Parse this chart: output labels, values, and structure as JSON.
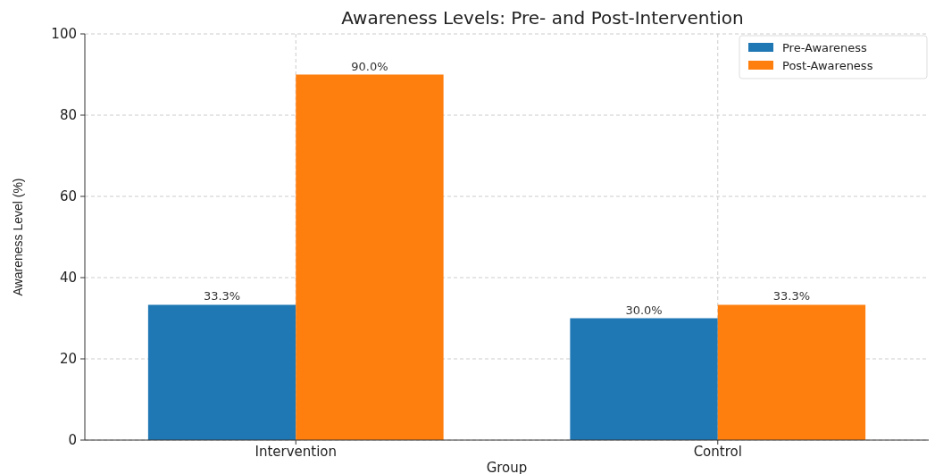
{
  "chart_data": {
    "type": "bar",
    "title": "Awareness Levels: Pre- and Post-Intervention",
    "xlabel": "Group",
    "ylabel": "Awareness Level (%)",
    "categories": [
      "Intervention",
      "Control"
    ],
    "series": [
      {
        "name": "Pre-Awareness",
        "color": "#1f77b4",
        "values": [
          33.3,
          30.0
        ],
        "value_labels": [
          "33.3%",
          "30.0%"
        ]
      },
      {
        "name": "Post-Awareness",
        "color": "#ff7f0e",
        "values": [
          90.0,
          33.3
        ],
        "value_labels": [
          "90.0%",
          "33.3%"
        ]
      }
    ],
    "ylim": [
      0,
      100
    ],
    "yticks": [
      0,
      20,
      40,
      60,
      80,
      100
    ],
    "grid": true,
    "legend": "top right"
  }
}
